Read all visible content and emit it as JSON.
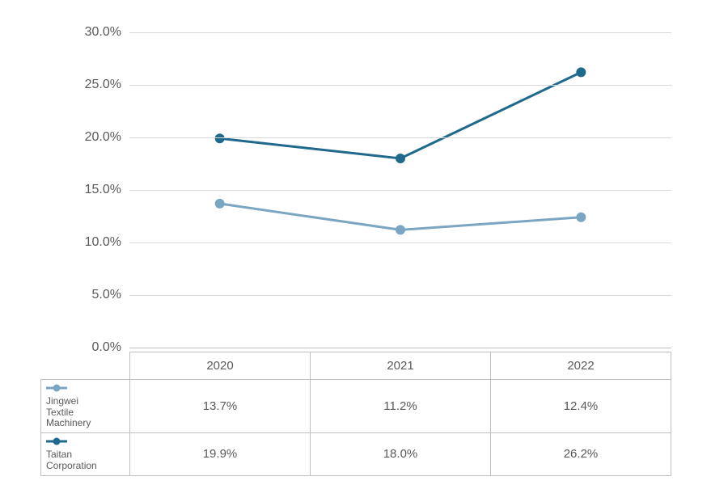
{
  "chart": {
    "type": "line",
    "background_color": "#ffffff",
    "grid_color": "#d9d9d9",
    "baseline_color": "#bfbfbf",
    "text_color": "#595959",
    "tick_fontsize": 16,
    "table_fontsize": 15,
    "table_border_color": "#bfbfbf",
    "ylim": [
      0,
      30
    ],
    "ytick_step": 5,
    "ytick_suffix": "%",
    "ytick_decimals": 1,
    "categories": [
      "2020",
      "2021",
      "2022"
    ],
    "marker_radius": 6,
    "line_width": 3,
    "series": [
      {
        "name": "Jingwei Textile Machinery",
        "color": "#7ba6c2",
        "values": [
          13.7,
          11.2,
          12.4
        ],
        "display": [
          "13.7%",
          "11.2%",
          "12.4%"
        ]
      },
      {
        "name": "Taitan Corporation",
        "color": "#1f6a8c",
        "values": [
          19.9,
          18.0,
          26.2
        ],
        "display": [
          "19.9%",
          "18.0%",
          "26.2%"
        ]
      }
    ]
  }
}
